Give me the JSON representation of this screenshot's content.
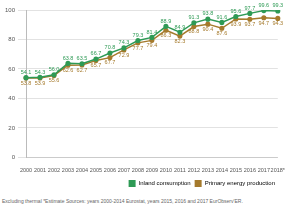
{
  "chart_data": {
    "type": "line",
    "annotation": "Excluding thermal *Estimate Sources: years 2000-2014 Eurostat, years 2015, 2016 and 2017 EurObserv'ER.",
    "categories": [
      "2000",
      "2001",
      "2002",
      "2003",
      "2004",
      "2005",
      "2006",
      "2007",
      "2008",
      "2009",
      "2010",
      "2011",
      "2012",
      "2013",
      "2014",
      "2015",
      "2016",
      "2017",
      "2018*"
    ],
    "series": [
      {
        "name": "Inland consumption",
        "color": "#2e9a55",
        "marker": "circle",
        "values": [
          54.1,
          54.3,
          56.0,
          63.8,
          63.5,
          66.7,
          70.8,
          74.3,
          79.3,
          81.4,
          88.9,
          84.9,
          91.3,
          93.8,
          91.6,
          95.6,
          97.7,
          99.6,
          99.3
        ],
        "value_labels": [
          "54.1",
          "54.3",
          "56.0",
          "63.8",
          "63.5",
          "66.7",
          "70.8",
          "74.3",
          "79.3",
          "81.4",
          "88.9",
          "84.9",
          "91.3",
          "93.8",
          "91.6",
          "95.6",
          "97.7",
          "99.6",
          "99.3"
        ]
      },
      {
        "name": "Primary energy production",
        "color": "#a57a2c",
        "marker": "circle",
        "values": [
          53.8,
          53.9,
          55.6,
          62.6,
          62.7,
          65.7,
          67.7,
          72.9,
          77.7,
          79.4,
          86.3,
          82.3,
          88.8,
          90.4,
          87.6,
          93.9,
          93.7,
          94.7,
          94.3
        ],
        "value_labels": [
          "53.8",
          "53.9",
          "55.6",
          "62.6",
          "62.7",
          "65.7",
          "67.7",
          "72.9",
          "77.7",
          "79.4",
          "86.3",
          "82.3",
          "88.8",
          "90.4",
          "87.6",
          "93.9",
          "93.7",
          "94.7",
          "94.3"
        ]
      }
    ],
    "ylim": [
      0,
      100
    ],
    "yticks": [
      0,
      20,
      40,
      60,
      80,
      100
    ],
    "grid": true,
    "legend": "bottom right",
    "data_labels": true
  }
}
